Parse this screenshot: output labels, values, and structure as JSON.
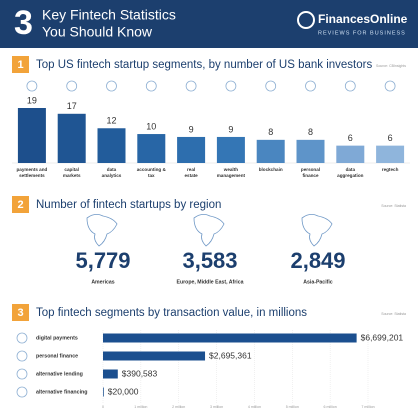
{
  "header": {
    "number": "3",
    "title_lines": [
      "Key Fintech Statistics",
      "You Should Know"
    ],
    "brand": "FinancesOnline",
    "tagline": "REVIEWS FOR BUSINESS"
  },
  "chart_data": [
    {
      "type": "bar",
      "section_number": "1",
      "title": "Top US fintech startup segments, by number of US bank investors",
      "source": "Source: CBInsights",
      "categories": [
        "payments and settlements",
        "capital markets",
        "data analytics",
        "accounting & tax",
        "real estate",
        "wealth management",
        "blockchain",
        "personal finance",
        "data aggregation",
        "regtech"
      ],
      "values": [
        19,
        17,
        12,
        10,
        9,
        9,
        8,
        8,
        6,
        6
      ],
      "colors": [
        "#1d4f8c",
        "#1f5593",
        "#225c9b",
        "#2866a6",
        "#2d6eae",
        "#3476b5",
        "#4a86c0",
        "#5e94c9",
        "#7fa9d6",
        "#8fb5dc"
      ]
    },
    {
      "type": "stat",
      "section_number": "2",
      "title": "Number of fintech startups by region",
      "source": "Source: Statista",
      "categories": [
        "Americas",
        "Europe, Middle East, Africa",
        "Asia-Pacific"
      ],
      "values": [
        5779,
        3583,
        2849
      ],
      "value_labels": [
        "5,779",
        "3,583",
        "2,849"
      ],
      "color": "#1c3f6e"
    },
    {
      "type": "hbar",
      "section_number": "3",
      "title": "Top fintech segments by transaction value, in millions",
      "source": "Source: Statista",
      "categories": [
        "digital payments",
        "personal finance",
        "alternative lending",
        "alternative financing"
      ],
      "values": [
        6699201,
        2695361,
        390583,
        20000
      ],
      "value_labels": [
        "$6,699,201",
        "$2,695,361",
        "$390,583",
        "$20,000"
      ],
      "color": "#1b4f8f",
      "xlim": [
        0,
        7000000
      ],
      "xticks": [
        0,
        {
          "value": 1000000,
          "label": "1 million"
        },
        {
          "value": 2000000,
          "label": "2 million"
        },
        {
          "value": 3000000,
          "label": "3 million"
        },
        {
          "value": 4000000,
          "label": "4 million"
        },
        {
          "value": 5000000,
          "label": "5 million"
        },
        {
          "value": 6000000,
          "label": "6 million"
        },
        {
          "value": 7000000,
          "label": "7 million"
        }
      ]
    }
  ]
}
